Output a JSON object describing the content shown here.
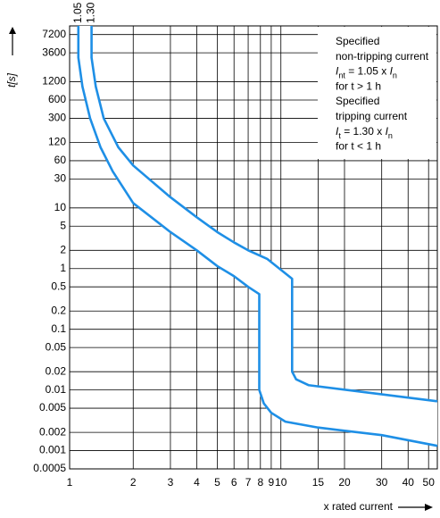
{
  "chart_data": {
    "type": "line",
    "xscale": "log",
    "yscale": "log",
    "grid": true,
    "x_label": "x rated current",
    "y_label": "t[s]",
    "xlim": [
      1,
      55
    ],
    "ylim": [
      0.0005,
      10000
    ],
    "xticks": [
      1,
      2,
      3,
      4,
      5,
      6,
      7,
      8,
      9,
      10,
      15,
      20,
      30,
      40,
      50
    ],
    "yticks": [
      7200,
      3600,
      1200,
      600,
      300,
      120,
      60,
      30,
      10,
      5,
      2,
      1,
      0.5,
      0.2,
      0.1,
      0.05,
      0.02,
      0.01,
      0.005,
      0.002,
      0.001,
      0.0005
    ],
    "series": [
      {
        "name": "1.05",
        "color": "#1e8fe6",
        "x": [
          1.1,
          1.1,
          1.15,
          1.25,
          1.4,
          1.6,
          2,
          3,
          4,
          5,
          6,
          7,
          7.9,
          7.9,
          8.3,
          9,
          10.5,
          15,
          30,
          55
        ],
        "values": [
          10000,
          3000,
          1000,
          300,
          100,
          40,
          12,
          4,
          2,
          1.1,
          0.75,
          0.5,
          0.38,
          0.01,
          0.006,
          0.0042,
          0.003,
          0.0024,
          0.0018,
          0.0012
        ]
      },
      {
        "name": "1.30",
        "color": "#1e8fe6",
        "x": [
          1.27,
          1.27,
          1.33,
          1.45,
          1.7,
          2,
          3,
          4,
          5,
          6,
          7,
          8.6,
          11.3,
          11.3,
          11.8,
          13.5,
          55
        ],
        "values": [
          10000,
          3000,
          1000,
          300,
          100,
          50,
          15,
          7,
          4,
          2.7,
          2,
          1.45,
          0.68,
          0.02,
          0.015,
          0.012,
          0.0065
        ]
      }
    ],
    "annotation": [
      [
        "Specified"
      ],
      [
        "non-tripping current"
      ],
      [
        "I",
        "nt",
        " = 1.05 x ",
        "I",
        "n"
      ],
      [
        "for t > 1 h"
      ],
      [
        "Specified"
      ],
      [
        "tripping current"
      ],
      [
        "I",
        "t",
        " = 1.30 x ",
        "I",
        "n"
      ],
      [
        "for t < 1 h"
      ]
    ]
  }
}
